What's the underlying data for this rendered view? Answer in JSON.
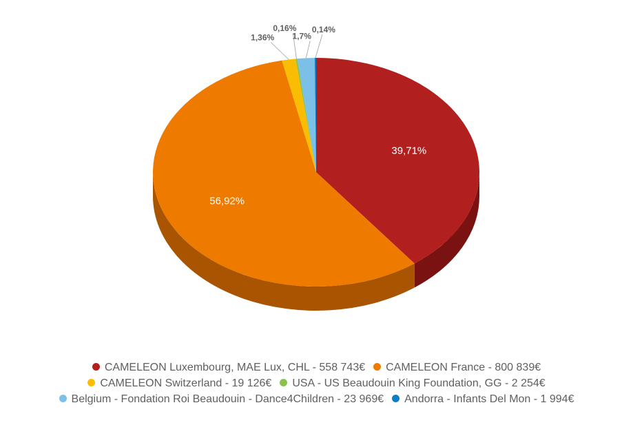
{
  "chart_data": {
    "type": "pie",
    "variant": "3d",
    "title": "",
    "slices": [
      {
        "label": "CAMELEON Luxembourg, MAE Lux, CHL - 558 743€",
        "value": 558743,
        "percent_label": "39,71%",
        "color": "#b21f1f",
        "side_color": "#7a1212",
        "label_placement": "inside"
      },
      {
        "label": "CAMELEON France - 800 839€",
        "value": 800839,
        "percent_label": "56,92%",
        "color": "#ef7a00",
        "side_color": "#a85400",
        "label_placement": "inside"
      },
      {
        "label": "CAMELEON Switzerland - 19 126€",
        "value": 19126,
        "percent_label": "1,36%",
        "color": "#fbbc04",
        "side_color": "#b88a00",
        "label_placement": "outside"
      },
      {
        "label": "USA - US Beaudouin King Foundation, GG - 2 254€",
        "value": 2254,
        "percent_label": "0,16%",
        "color": "#8bc34a",
        "side_color": "#5e8a2e",
        "label_placement": "outside"
      },
      {
        "label": "Belgium - Fondation Roi Beaudouin - Dance4Children - 23 969€",
        "value": 23969,
        "percent_label": "1,7%",
        "color": "#7cc0e8",
        "side_color": "#4f8fb5",
        "label_placement": "outside"
      },
      {
        "label": "Andorra - Infants Del Mon - 1 994€",
        "value": 1994,
        "percent_label": "0,14%",
        "color": "#0a7fc9",
        "side_color": "#055a91",
        "label_placement": "outside"
      }
    ],
    "legend_position": "bottom",
    "legend_rows": [
      [
        0,
        1
      ],
      [
        2,
        3
      ],
      [
        4,
        5
      ]
    ]
  }
}
